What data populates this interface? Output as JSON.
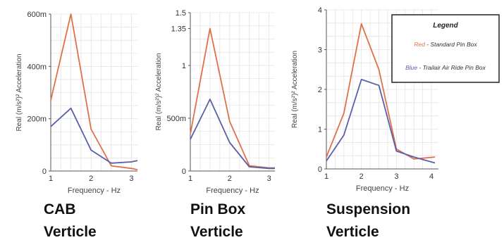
{
  "chart_data": [
    {
      "type": "line",
      "caption_line1": "CAB",
      "caption_line2": "Verticle",
      "xlabel": "Frequency - Hz",
      "ylabel": "Real (m/s²)² Acceleration",
      "x_ticks": [
        "1",
        "2",
        "3"
      ],
      "y_ticks": [
        "0",
        "200m",
        "400m",
        "600m"
      ],
      "xlim": [
        1,
        3.15
      ],
      "ylim": [
        0,
        0.6
      ],
      "grid": true,
      "series": [
        {
          "color": "#e0704a",
          "x": [
            1,
            1.5,
            2,
            2.5,
            3,
            3.15
          ],
          "y": [
            0.27,
            0.6,
            0.16,
            0.02,
            0.01,
            0.005
          ]
        },
        {
          "color": "#5a5fa8",
          "x": [
            1,
            1.5,
            2,
            2.5,
            3,
            3.15
          ],
          "y": [
            0.17,
            0.24,
            0.08,
            0.03,
            0.035,
            0.04
          ]
        }
      ]
    },
    {
      "type": "line",
      "caption_line1": "Pin Box",
      "caption_line2": "Verticle",
      "xlabel": "Frequency - Hz",
      "ylabel": "Real (m/s²)² Acceleration",
      "x_ticks": [
        "1",
        "2",
        "3"
      ],
      "y_ticks": [
        "0",
        "500m",
        "1",
        "1.35",
        "1.5"
      ],
      "xlim": [
        1,
        3.15
      ],
      "ylim": [
        0,
        1.5
      ],
      "grid": true,
      "series": [
        {
          "color": "#e0704a",
          "x": [
            1,
            1.5,
            2,
            2.5,
            3,
            3.15
          ],
          "y": [
            0.35,
            1.35,
            0.47,
            0.05,
            0.03,
            0.03
          ]
        },
        {
          "color": "#5a5fa8",
          "x": [
            1,
            1.5,
            2,
            2.5,
            3,
            3.15
          ],
          "y": [
            0.3,
            0.68,
            0.27,
            0.04,
            0.025,
            0.025
          ]
        }
      ]
    },
    {
      "type": "line",
      "caption_line1": "Suspension",
      "caption_line2": "Verticle",
      "xlabel": "Frequency - Hz",
      "ylabel": "Real (m/s²)² Acceleration",
      "x_ticks": [
        "1",
        "2",
        "3",
        "4"
      ],
      "y_ticks": [
        "0",
        "1",
        "2",
        "3",
        "4"
      ],
      "xlim": [
        1,
        4.2
      ],
      "ylim": [
        0,
        4
      ],
      "grid": true,
      "series": [
        {
          "color": "#e0704a",
          "x": [
            1,
            1.5,
            2,
            2.5,
            3,
            3.5,
            4.1
          ],
          "y": [
            0.3,
            1.4,
            3.65,
            2.5,
            0.5,
            0.25,
            0.3
          ]
        },
        {
          "color": "#5a5fa8",
          "x": [
            1,
            1.5,
            2,
            2.5,
            3,
            3.5,
            4.1
          ],
          "y": [
            0.2,
            0.85,
            2.25,
            2.1,
            0.45,
            0.3,
            0.15
          ]
        }
      ]
    }
  ],
  "legend": {
    "title": "Legend",
    "items": [
      {
        "color": "#e0704a",
        "color_text": "Red",
        "label": " - Standard Pin Box"
      },
      {
        "color": "#5a5fa8",
        "color_text": "Blue",
        "label": " - Trailair Air Ride Pin Box"
      }
    ]
  }
}
